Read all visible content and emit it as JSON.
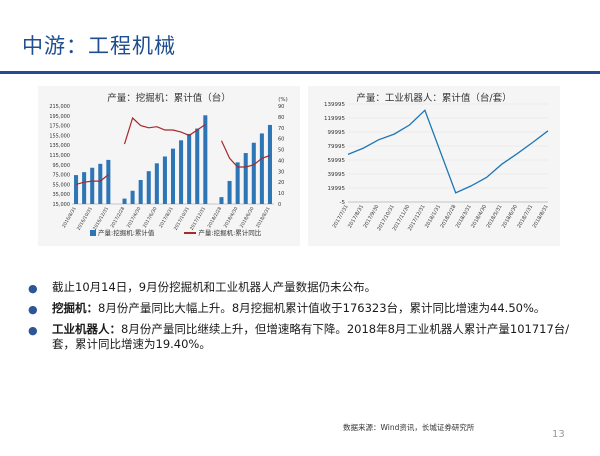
{
  "slide": {
    "title": "中游：工程机械",
    "page_number": "13",
    "source": "数据来源：Wind资讯，长城证券研究所"
  },
  "bullets": [
    {
      "lead": "",
      "text": "截止10月14日，9月份挖掘机和工业机器人产量数据仍未公布。"
    },
    {
      "lead": "挖掘机：",
      "text": "8月份产量同比大幅上升。8月挖掘机累计值收于176323台，累计同比增速为44.50%。"
    },
    {
      "lead": "工业机器人：",
      "text": "8月份产量同比继续上升，但增速略有下降。2018年8月工业机器人累计产量101717台/套，累计同比增速为19.40%。"
    }
  ],
  "chart_data": [
    {
      "type": "bar",
      "title": "产量：挖掘机：累计值（台）",
      "right_axis_unit": "(%)",
      "categories": [
        "2016/8/31",
        "2016/9/30",
        "2016/10/31",
        "2016/11/30",
        "2016/12/31",
        "2017/1/31",
        "2017/2/28",
        "2017/3/31",
        "2017/4/30",
        "2017/5/31",
        "2017/6/30",
        "2017/7/31",
        "2017/8/31",
        "2017/9/30",
        "2017/10/31",
        "2017/11/30",
        "2017/12/31",
        "2018/1/31",
        "2018/2/28",
        "2018/3/31",
        "2018/4/30",
        "2018/5/31",
        "2018/6/30",
        "2018/7/31",
        "2018/8/31"
      ],
      "x_tick_labels": [
        "2016/8/31",
        "2016/10/31",
        "2016/12/31",
        "2017/2/28",
        "2017/4/30",
        "2017/6/30",
        "2017/8/31",
        "2017/10/31",
        "2017/12/31",
        "2018/2/28",
        "2018/4/30",
        "2018/6/30",
        "2018/8/31"
      ],
      "y_left_ticks": [
        "15,000",
        "35,000",
        "55,000",
        "75,000",
        "95,000",
        "115,000",
        "135,000",
        "155,000",
        "175,000",
        "195,000",
        "215,000"
      ],
      "y_right_ticks": [
        "0",
        "10",
        "20",
        "30",
        "40",
        "50",
        "60",
        "70",
        "80",
        "90"
      ],
      "ylim_left": [
        15000,
        215000
      ],
      "ylim_right": [
        0,
        90
      ],
      "series": [
        {
          "name": "产量:挖掘机:累计值",
          "type": "bar",
          "axis": "left",
          "color": "#2e75b6",
          "values": [
            74000,
            80000,
            89000,
            97000,
            105000,
            null,
            26000,
            42000,
            64000,
            82000,
            98000,
            112000,
            128000,
            145000,
            158000,
            169000,
            196000,
            null,
            29000,
            62000,
            100000,
            119000,
            140000,
            159000,
            176323
          ]
        },
        {
          "name": "产量:挖掘机:累计同比",
          "type": "line",
          "axis": "right",
          "color": "#a52a2a",
          "values": [
            18,
            20,
            21,
            21,
            27,
            null,
            55,
            79,
            72,
            70,
            71,
            68,
            68,
            66,
            63,
            68,
            73,
            null,
            58,
            42,
            34,
            34,
            36,
            42,
            44.5
          ]
        }
      ]
    },
    {
      "type": "line",
      "title": "产量：工业机器人：累计值（台/套）",
      "x": [
        "2017/7/31",
        "2017/8/31",
        "2017/9/30",
        "2017/10/31",
        "2017/11/30",
        "2017/12/31",
        "2018/1/31",
        "2018/2/28",
        "2018/3/31",
        "2018/4/30",
        "2018/5/31",
        "2018/6/30",
        "2018/7/31",
        "2018/8/31"
      ],
      "y_ticks": [
        "-5",
        "19995",
        "39995",
        "59995",
        "79995",
        "99995",
        "119995",
        "139995"
      ],
      "ylim": [
        -5,
        139995
      ],
      "series": [
        {
          "name": "",
          "color": "#1f77b4",
          "values": [
            68000,
            77000,
            89000,
            97000,
            110000,
            131000,
            null,
            13000,
            23000,
            35000,
            54000,
            69000,
            85000,
            101717
          ]
        }
      ]
    }
  ]
}
